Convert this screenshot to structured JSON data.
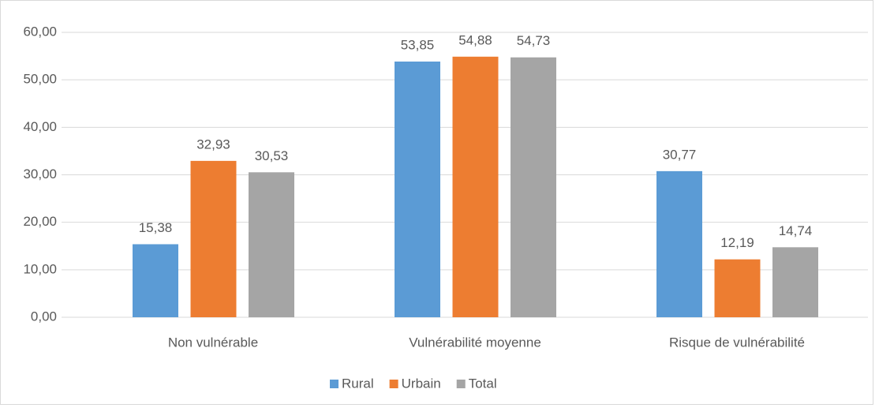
{
  "chart_data": {
    "type": "bar",
    "categories": [
      "Non vulnérable",
      "Vulnérabilité moyenne",
      "Risque de vulnérabilité"
    ],
    "series": [
      {
        "name": "Rural",
        "color": "#5b9bd5",
        "values": [
          15.38,
          53.85,
          30.77
        ],
        "value_labels": [
          "15,38",
          "53,85",
          "30,77"
        ]
      },
      {
        "name": "Urbain",
        "color": "#ed7d31",
        "values": [
          32.93,
          54.88,
          12.19
        ],
        "value_labels": [
          "32,93",
          "54,88",
          "12,19"
        ]
      },
      {
        "name": "Total",
        "color": "#a5a5a5",
        "values": [
          30.53,
          54.73,
          14.74
        ],
        "value_labels": [
          "30,53",
          "54,73",
          "14,74"
        ]
      }
    ],
    "ylim": [
      0,
      60
    ],
    "yticks": [
      {
        "value": 0,
        "label": "0,00"
      },
      {
        "value": 10,
        "label": "10,00"
      },
      {
        "value": 20,
        "label": "20,00"
      },
      {
        "value": 30,
        "label": "30,00"
      },
      {
        "value": 40,
        "label": "40,00"
      },
      {
        "value": 50,
        "label": "50,00"
      },
      {
        "value": 60,
        "label": "60,00"
      }
    ],
    "grid": true,
    "legend": "bottom"
  }
}
